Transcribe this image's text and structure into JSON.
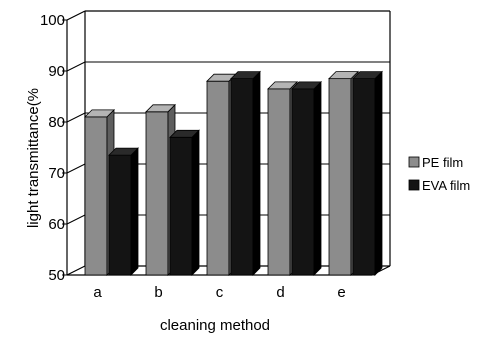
{
  "chart_data": {
    "type": "bar",
    "categories": [
      "a",
      "b",
      "c",
      "d",
      "e"
    ],
    "series": [
      {
        "name": "PE film",
        "values": [
          81,
          82,
          88,
          86.5,
          88.5
        ]
      },
      {
        "name": "EVA film",
        "values": [
          73.5,
          77,
          88.5,
          86.5,
          88.5
        ]
      }
    ],
    "xlabel": "cleaning method",
    "ylabel": "light transmittance(%",
    "ylim": [
      50,
      100
    ],
    "yticks": [
      "50",
      "60",
      "70",
      "80",
      "90",
      "100"
    ],
    "legend_position": "right",
    "colors": {
      "pe": "#8c8c8c",
      "eva": "#141414"
    }
  }
}
